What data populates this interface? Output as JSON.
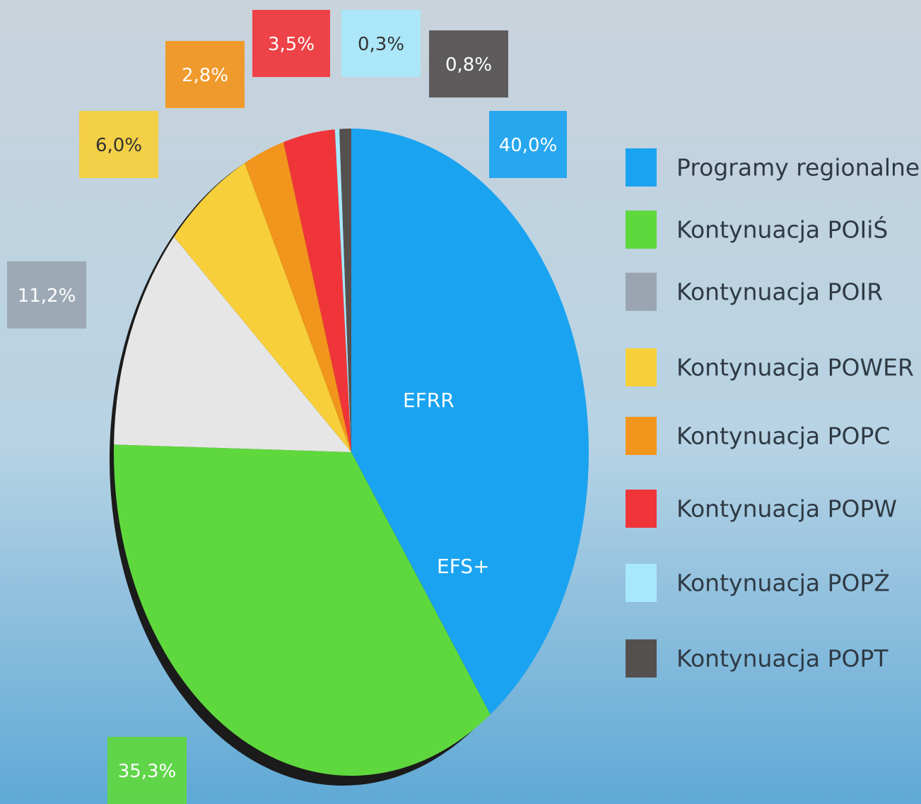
{
  "chart_data": {
    "type": "pie",
    "categories": [
      "Programy regionalne",
      "Kontynuacja  POIiŚ",
      "Kontynuacja  POIR",
      "Kontynuacja  POWER",
      "Kontynuacja  POPC",
      "Kontynuacja  POPW",
      "Kontynuacja  POPŻ",
      "Kontynuacja  POPT"
    ],
    "values": [
      40.0,
      35.3,
      11.2,
      6.0,
      2.8,
      3.5,
      0.3,
      0.8
    ],
    "value_labels": [
      "40,0%",
      "35,3%",
      "11,2%",
      "6,0%",
      "2,8%",
      "3,5%",
      "0,3%",
      "0,8%"
    ],
    "colors": [
      "#1aa3f0",
      "#5fd83e",
      "#9aa5b1",
      "#f7cf3a",
      "#f2951c",
      "#f0353a",
      "#a8e8fb",
      "#555050"
    ],
    "annotations": [
      "EFRR",
      "EFS+"
    ],
    "legend": "right"
  }
}
